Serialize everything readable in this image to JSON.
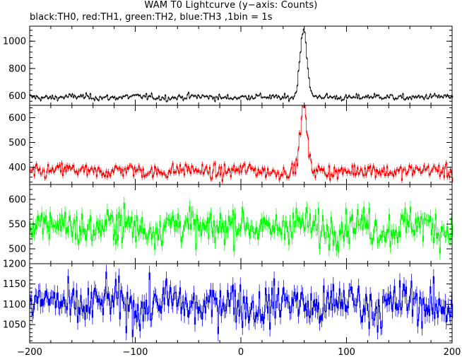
{
  "title": "WAM T0 Lightcurve (y−axis: Counts)",
  "subtitle": "black:TH0, red:TH1, green:TH2, blue:TH3 ,1bin = 1s",
  "chart_data": {
    "type": "line",
    "x_range": [
      -200,
      200
    ],
    "x_ticks": [
      -200,
      -100,
      0,
      100,
      200
    ],
    "x_tick_labels": [
      "−200",
      "−100",
      "0",
      "100",
      "200"
    ],
    "bin_seconds": 1,
    "panels": [
      {
        "name": "TH0",
        "color": "#000000",
        "ylim": [
          530,
          1110
        ],
        "y_ticks": [
          600,
          800,
          1000
        ],
        "y_tick_labels": [
          "600",
          "800",
          "1000"
        ],
        "baseline": 590,
        "noise_sigma": 14,
        "peak": {
          "center_s": 59,
          "peak_value": 1090,
          "pre_plateau_value": 800,
          "width_s": 3
        }
      },
      {
        "name": "TH1",
        "color": "#ff0000",
        "ylim": [
          330,
          650
        ],
        "y_ticks": [
          400,
          500,
          600
        ],
        "y_tick_labels": [
          "400",
          "500",
          "600"
        ],
        "baseline": 385,
        "noise_sigma": 18,
        "peak": {
          "center_s": 59,
          "peak_value": 650,
          "pre_plateau_value": 440,
          "width_s": 3
        }
      },
      {
        "name": "TH2",
        "color": "#00ff00",
        "ylim": [
          470,
          630
        ],
        "y_ticks": [
          500,
          550,
          600
        ],
        "y_tick_labels": [
          "500",
          "550",
          "600"
        ],
        "baseline": 545,
        "noise_sigma": 22
      },
      {
        "name": "TH3",
        "color": "#0000ff",
        "ylim": [
          1005,
          1200
        ],
        "y_ticks": [
          1050,
          1100,
          1150,
          1200
        ],
        "y_tick_labels": [
          "1050",
          "1100",
          "1150",
          "1200"
        ],
        "baseline": 1100,
        "noise_sigma": 32
      }
    ]
  }
}
